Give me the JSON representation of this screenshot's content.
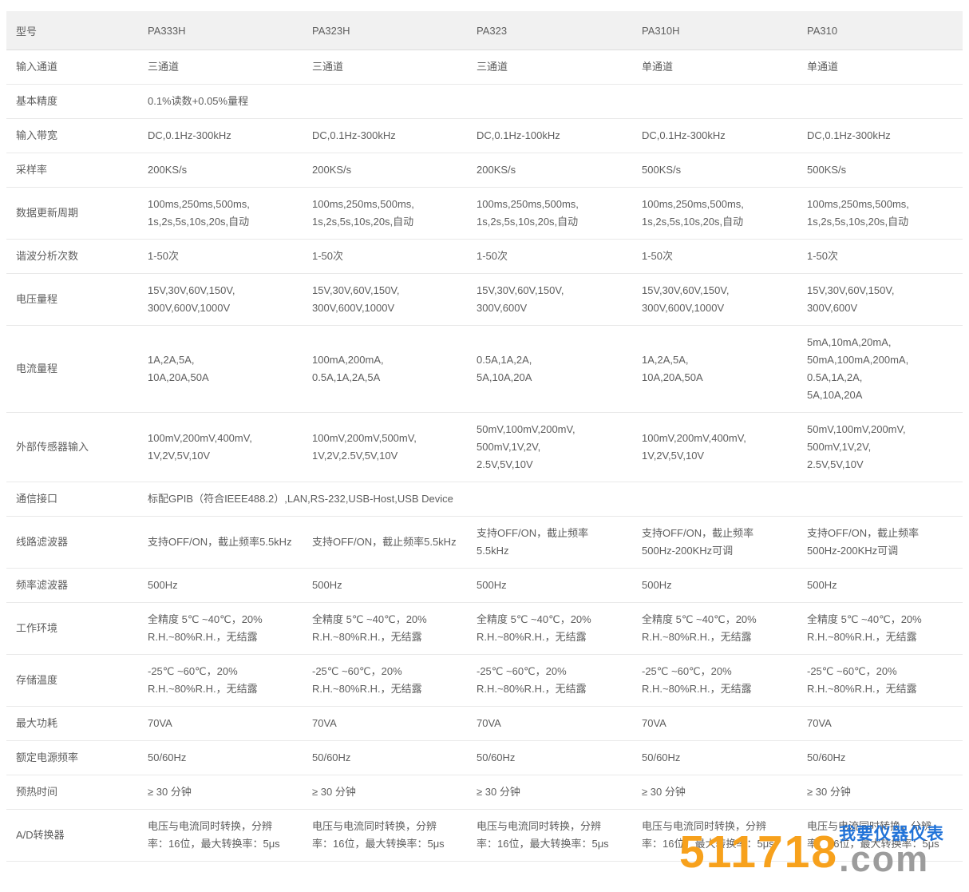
{
  "colors": {
    "header_bg": "#f1f1f1",
    "header_border": "#dcdcdc",
    "row_border": "#e9e9e9",
    "text": "#5e5e5e"
  },
  "table": {
    "header": {
      "label": "型号",
      "models": [
        "PA333H",
        "PA323H",
        "PA323",
        "PA310H",
        "PA310"
      ]
    },
    "rows": [
      {
        "label": "输入通道",
        "cells": [
          "三通道",
          "三通道",
          "三通道",
          "单通道",
          "单通道"
        ]
      },
      {
        "label": "基本精度",
        "span": 5,
        "cells": [
          "0.1%读数+0.05%量程"
        ]
      },
      {
        "label": "输入带宽",
        "cells": [
          "DC,0.1Hz-300kHz",
          "DC,0.1Hz-300kHz",
          "DC,0.1Hz-100kHz",
          "DC,0.1Hz-300kHz",
          "DC,0.1Hz-300kHz"
        ]
      },
      {
        "label": "采样率",
        "cells": [
          "200KS/s",
          "200KS/s",
          "200KS/s",
          "500KS/s",
          "500KS/s"
        ]
      },
      {
        "label": "数据更新周期",
        "cells": [
          "100ms,250ms,500ms,\n1s,2s,5s,10s,20s,自动",
          "100ms,250ms,500ms,\n1s,2s,5s,10s,20s,自动",
          "100ms,250ms,500ms,\n1s,2s,5s,10s,20s,自动",
          "100ms,250ms,500ms,\n1s,2s,5s,10s,20s,自动",
          "100ms,250ms,500ms,\n1s,2s,5s,10s,20s,自动"
        ]
      },
      {
        "label": "谐波分析次数",
        "cells": [
          "1-50次",
          "1-50次",
          "1-50次",
          "1-50次",
          "1-50次"
        ]
      },
      {
        "label": "电压量程",
        "cells": [
          "15V,30V,60V,150V,\n300V,600V,1000V",
          "15V,30V,60V,150V,\n300V,600V,1000V",
          "15V,30V,60V,150V,\n300V,600V",
          "15V,30V,60V,150V,\n300V,600V,1000V",
          "15V,30V,60V,150V,\n300V,600V"
        ]
      },
      {
        "label": "电流量程",
        "cells": [
          "1A,2A,5A,\n10A,20A,50A",
          "100mA,200mA,\n0.5A,1A,2A,5A",
          "0.5A,1A,2A,\n5A,10A,20A",
          "1A,2A,5A,\n10A,20A,50A",
          "5mA,10mA,20mA,\n50mA,100mA,200mA,\n0.5A,1A,2A,\n5A,10A,20A"
        ]
      },
      {
        "label": "外部传感器输入",
        "cells": [
          "100mV,200mV,400mV,\n1V,2V,5V,10V",
          "100mV,200mV,500mV,\n1V,2V,2.5V,5V,10V",
          "50mV,100mV,200mV,\n500mV,1V,2V,\n2.5V,5V,10V",
          "100mV,200mV,400mV,\n1V,2V,5V,10V",
          "50mV,100mV,200mV,\n500mV,1V,2V,\n2.5V,5V,10V"
        ]
      },
      {
        "label": "通信接口",
        "span": 5,
        "cells": [
          "标配GPIB（符合IEEE488.2）,LAN,RS-232,USB-Host,USB Device"
        ]
      },
      {
        "label": "线路滤波器",
        "cells": [
          "支持OFF/ON，截止频率5.5kHz",
          "支持OFF/ON，截止频率5.5kHz",
          "支持OFF/ON，截止频率\n5.5kHz",
          "支持OFF/ON，截止频率\n500Hz-200KHz可调",
          "支持OFF/ON，截止频率\n500Hz-200KHz可调"
        ]
      },
      {
        "label": "频率滤波器",
        "cells": [
          "500Hz",
          "500Hz",
          "500Hz",
          "500Hz",
          "500Hz"
        ]
      },
      {
        "label": "工作环境",
        "cells": [
          "全精度 5℃ ~40℃，20%\nR.H.~80%R.H.，无结露",
          "全精度 5℃ ~40℃，20%\nR.H.~80%R.H.，无结露",
          "全精度 5℃ ~40℃，20%\nR.H.~80%R.H.，无结露",
          "全精度 5℃ ~40℃，20%\nR.H.~80%R.H.，无结露",
          "全精度 5℃ ~40℃，20%\nR.H.~80%R.H.，无结露"
        ]
      },
      {
        "label": "存储温度",
        "cells": [
          "-25℃ ~60℃，20%\nR.H.~80%R.H.，无结露",
          "-25℃ ~60℃，20%\nR.H.~80%R.H.，无结露",
          "-25℃ ~60℃，20%\nR.H.~80%R.H.，无结露",
          "-25℃ ~60℃，20%\nR.H.~80%R.H.，无结露",
          "-25℃ ~60℃，20%\nR.H.~80%R.H.，无结露"
        ]
      },
      {
        "label": "最大功耗",
        "cells": [
          "70VA",
          "70VA",
          "70VA",
          "70VA",
          "70VA"
        ]
      },
      {
        "label": "额定电源频率",
        "cells": [
          "50/60Hz",
          "50/60Hz",
          "50/60Hz",
          "50/60Hz",
          "50/60Hz"
        ]
      },
      {
        "label": "预热时间",
        "cells": [
          "≥ 30 分钟",
          "≥ 30 分钟",
          "≥ 30 分钟",
          "≥ 30 分钟",
          "≥ 30 分钟"
        ]
      },
      {
        "label": "A/D转换器",
        "cells": [
          "电压与电流同时转换，分辨\n率：16位，最大转换率：5μs",
          "电压与电流同时转换，分辨\n率：16位，最大转换率：5μs",
          "电压与电流同时转换，分辨\n率：16位，最大转换率：5μs",
          "电压与电流同时转换，分辨\n率：16位，最大转换率：5μs",
          "电压与电流同时转换，分辨\n率：16位，最大转换率：5μs"
        ]
      }
    ]
  },
  "watermark": {
    "number": "511718",
    "domain": ".com",
    "slogan": "我要仪器仪表",
    "colors": {
      "orange": "#f7a11c",
      "gray": "#9c9c9c",
      "blue": "#2173d8"
    }
  }
}
